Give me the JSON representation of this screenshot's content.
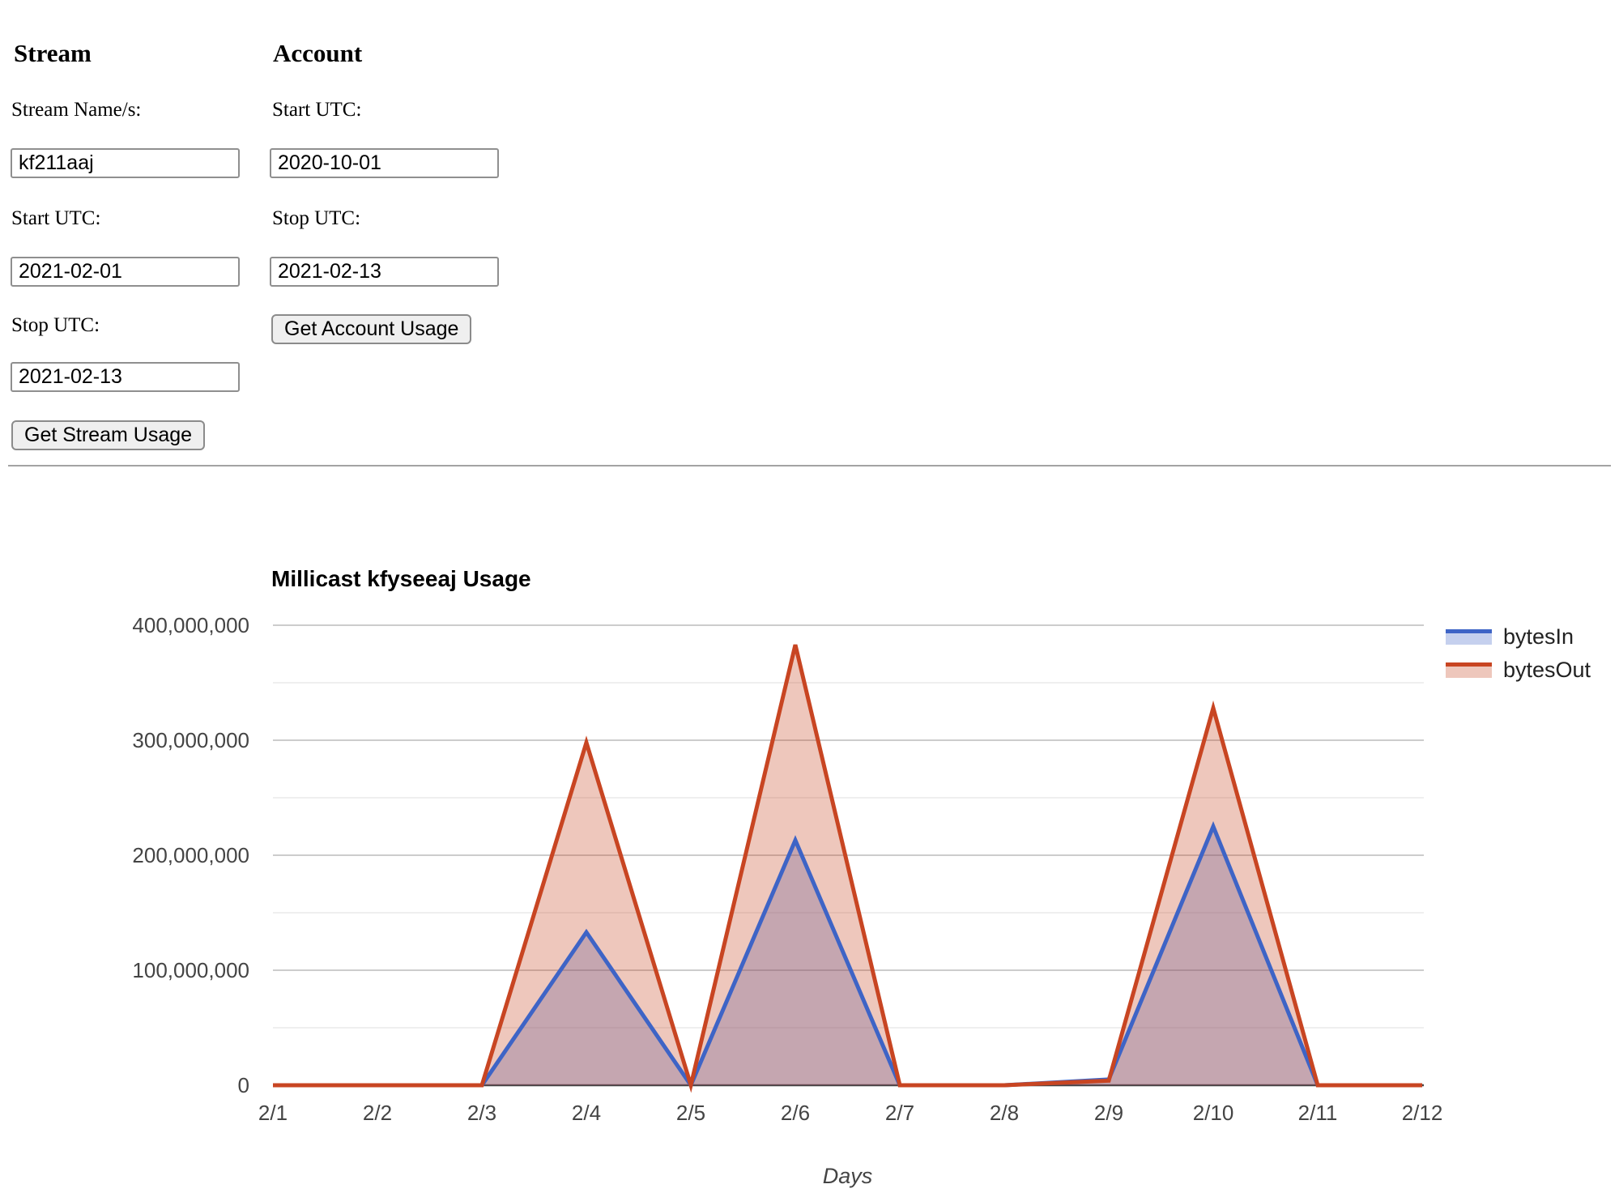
{
  "form": {
    "stream": {
      "heading": "Stream",
      "name_label": "Stream Name/s:",
      "name_value": "kf211aaj",
      "start_label": "Start UTC:",
      "start_value": "2021-02-01",
      "stop_label": "Stop UTC:",
      "stop_value": "2021-02-13",
      "button_label": "Get Stream Usage"
    },
    "account": {
      "heading": "Account",
      "start_label": "Start UTC:",
      "start_value": "2020-10-01",
      "stop_label": "Stop UTC:",
      "stop_value": "2021-02-13",
      "button_label": "Get Account Usage"
    }
  },
  "chart_data": {
    "type": "area",
    "title": "Millicast kfyseeaj Usage",
    "xlabel": "Days",
    "x": [
      "2/1",
      "2/2",
      "2/3",
      "2/4",
      "2/5",
      "2/6",
      "2/7",
      "2/8",
      "2/9",
      "2/10",
      "2/11",
      "2/12"
    ],
    "y_ticks": [
      "0",
      "100,000,000",
      "200,000,000",
      "300,000,000",
      "400,000,000"
    ],
    "ylim": [
      0,
      400000000
    ],
    "y_major_step": 100000000,
    "y_minor_step": 50000000,
    "grid": true,
    "legend_position": "right",
    "series": [
      {
        "name": "bytesIn",
        "color": "#3e64c6",
        "fill_alpha": 0.3,
        "values": [
          0,
          0,
          0,
          133000000,
          0,
          213000000,
          0,
          0,
          5000000,
          225000000,
          0,
          0
        ]
      },
      {
        "name": "bytesOut",
        "color": "#c84522",
        "fill_alpha": 0.3,
        "values": [
          0,
          0,
          0,
          298000000,
          0,
          383000000,
          0,
          0,
          4000000,
          328000000,
          0,
          0
        ]
      }
    ],
    "grid_color_major": "#cccccc",
    "grid_color_minor": "#efefef",
    "baseline_color": "#444444"
  }
}
